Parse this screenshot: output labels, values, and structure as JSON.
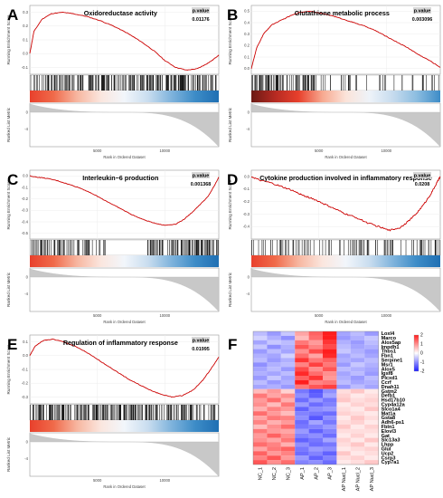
{
  "figure": {
    "panel_labels": [
      "A",
      "B",
      "C",
      "D",
      "E",
      "F"
    ]
  },
  "common": {
    "ylabel_es": "Running Enrichment Score",
    "ylabel_rank": "Ranked List Metric",
    "xlabel": "Rank in Ordered Dataset",
    "xticks": [
      "5000",
      "10000"
    ],
    "rank_yticks": [
      "0",
      "-4"
    ],
    "pvalue_label": "p.value",
    "colors": {
      "curve": "#cc0000",
      "ticks": "#111111",
      "metric_fill": "#c8c8c8",
      "bar_red": "#e8402c",
      "bar_blue": "#2a7fbf"
    }
  },
  "chart_data": [
    {
      "type": "line",
      "panel": "A",
      "title": "Oxidoreductase activity",
      "pvalue": "0.01176",
      "yticks": [
        "0.3",
        "0.2",
        "0.1",
        "0.0",
        "-0.1"
      ],
      "ylim": [
        -0.15,
        0.35
      ],
      "xlim": [
        0,
        14000
      ],
      "x": [
        0,
        300,
        900,
        1600,
        2400,
        3200,
        4200,
        5200,
        6200,
        7200,
        8200,
        9200,
        10000,
        10800,
        11600,
        12400,
        13000,
        13500,
        14000
      ],
      "y": [
        0.0,
        0.16,
        0.25,
        0.29,
        0.3,
        0.29,
        0.27,
        0.24,
        0.2,
        0.15,
        0.09,
        0.02,
        -0.05,
        -0.1,
        -0.12,
        -0.11,
        -0.08,
        -0.05,
        -0.01
      ],
      "hit_density": "dense",
      "bar_gradient": [
        "#e8402c",
        "#f06a4a",
        "#f7b6a0",
        "#fbe6de",
        "#f2f6fb",
        "#c9ddef",
        "#7fb3dc",
        "#3d8cc7",
        "#1f6fb3"
      ]
    },
    {
      "type": "line",
      "panel": "B",
      "title": "Glutathione metabolic process",
      "pvalue": "0.003096",
      "yticks": [
        "0.5",
        "0.4",
        "0.3",
        "0.2",
        "0.1",
        "0.0"
      ],
      "ylim": [
        -0.05,
        0.55
      ],
      "xlim": [
        0,
        14000
      ],
      "x": [
        0,
        400,
        900,
        1500,
        2200,
        2900,
        3600,
        4400,
        5200,
        6000,
        6800,
        7600,
        8400,
        9200,
        10000,
        10800,
        11600,
        12400,
        13200,
        14000
      ],
      "y": [
        0.0,
        0.18,
        0.3,
        0.38,
        0.42,
        0.46,
        0.49,
        0.5,
        0.48,
        0.46,
        0.43,
        0.4,
        0.37,
        0.33,
        0.28,
        0.23,
        0.18,
        0.12,
        0.07,
        0.01
      ],
      "hit_density": "medium",
      "bar_gradient": [
        "#6b1a14",
        "#b52a22",
        "#e8402c",
        "#f7a88f",
        "#fbe3d9",
        "#eef3f9",
        "#c6dbee",
        "#8cbde0",
        "#3d8cc7"
      ]
    },
    {
      "type": "line",
      "panel": "C",
      "title": "Interleukin−6 production",
      "pvalue": "0.001368",
      "yticks": [
        "0.0",
        "-0.1",
        "-0.2",
        "-0.3",
        "-0.4",
        "-0.5"
      ],
      "ylim": [
        -0.55,
        0.05
      ],
      "xlim": [
        0,
        14000
      ],
      "x": [
        0,
        500,
        1200,
        2000,
        2800,
        3600,
        4400,
        5200,
        6000,
        6800,
        7600,
        8400,
        9200,
        10000,
        10800,
        11400,
        12000,
        12600,
        13200,
        13700,
        14000
      ],
      "y": [
        0.0,
        -0.01,
        -0.02,
        -0.04,
        -0.07,
        -0.1,
        -0.14,
        -0.19,
        -0.24,
        -0.29,
        -0.34,
        -0.38,
        -0.41,
        -0.43,
        -0.42,
        -0.38,
        -0.32,
        -0.25,
        -0.18,
        -0.08,
        -0.01
      ],
      "hit_density": "dense_right",
      "bar_gradient": [
        "#e8402c",
        "#f06a4a",
        "#f7b6a0",
        "#fbe6de",
        "#f2f6fb",
        "#c9ddef",
        "#7fb3dc",
        "#3d8cc7",
        "#1f6fb3"
      ]
    },
    {
      "type": "line",
      "panel": "D",
      "title": "Cytokine production involved in inflammatory response",
      "pvalue": "0.0208",
      "yticks": [
        "0.0",
        "-0.1",
        "-0.2",
        "-0.3",
        "-0.4"
      ],
      "ylim": [
        -0.5,
        0.05
      ],
      "xlim": [
        0,
        14000
      ],
      "x": [
        0,
        600,
        1400,
        2200,
        3000,
        3800,
        4600,
        5400,
        6200,
        7000,
        7800,
        8600,
        9400,
        10200,
        11000,
        11600,
        12200,
        12800,
        13300,
        13700,
        14000
      ],
      "y": [
        0.0,
        -0.03,
        -0.05,
        -0.08,
        -0.11,
        -0.15,
        -0.18,
        -0.22,
        -0.26,
        -0.3,
        -0.33,
        -0.37,
        -0.4,
        -0.43,
        -0.41,
        -0.36,
        -0.3,
        -0.22,
        -0.14,
        -0.06,
        0.0
      ],
      "hit_density": "sparse",
      "bar_gradient": [
        "#e8402c",
        "#f06a4a",
        "#f7b6a0",
        "#fbe6de",
        "#f2f6fb",
        "#c9ddef",
        "#7fb3dc",
        "#3d8cc7",
        "#1f6fb3"
      ]
    },
    {
      "type": "line",
      "panel": "E",
      "title": "Regulation of inflammatory response",
      "pvalue": "0.01995",
      "yticks": [
        "0.1",
        "0.0",
        "-0.1",
        "-0.2",
        "-0.3"
      ],
      "ylim": [
        -0.35,
        0.15
      ],
      "xlim": [
        0,
        14000
      ],
      "x": [
        0,
        400,
        1000,
        1700,
        2500,
        3300,
        4100,
        4900,
        5700,
        6500,
        7300,
        8100,
        8900,
        9700,
        10500,
        11300,
        12100,
        12800,
        13400,
        14000
      ],
      "y": [
        0.0,
        0.07,
        0.11,
        0.12,
        0.1,
        0.07,
        0.03,
        -0.02,
        -0.07,
        -0.12,
        -0.17,
        -0.21,
        -0.25,
        -0.28,
        -0.3,
        -0.29,
        -0.25,
        -0.18,
        -0.1,
        -0.01
      ],
      "hit_density": "dense",
      "bar_gradient": [
        "#e8402c",
        "#f06a4a",
        "#f7b6a0",
        "#fbe6de",
        "#f2f6fb",
        "#c9ddef",
        "#7fb3dc",
        "#3d8cc7",
        "#1f6fb3"
      ]
    },
    {
      "type": "heatmap",
      "panel": "F",
      "columns": [
        "NC_1",
        "NC_2",
        "NC_3",
        "AP_1",
        "AP_2",
        "AP_3",
        "AP Nucl_1",
        "AP Nucl_2",
        "AP Nucl_3"
      ],
      "rows": [
        "Loxl4",
        "Marco",
        "Alox5ap",
        "Impdh1",
        "Thbs1",
        "Fbn1",
        "Serpine1",
        "Msr1",
        "Alox5",
        "Igsf8",
        "Plcxd1",
        "Ccrf",
        "Dnah11",
        "Gstm2",
        "Defb1",
        "Hsd17b10",
        "Cyp4a12a",
        "Slco1a4",
        "Mat1a",
        "Gsta8",
        "Adh6-ps1",
        "Fbln1",
        "Elovl3",
        "Gat",
        "Slc13a3",
        "Lhpp",
        "Glul",
        "Ucp2",
        "Csrp3",
        "Cyp7a1"
      ],
      "legend_ticks": [
        "2",
        "1",
        "0",
        "-1",
        "-2"
      ],
      "color_range": [
        -2,
        2
      ],
      "values": [
        [
          -0.6,
          -0.9,
          -0.5,
          0.8,
          1.4,
          2.4,
          -0.8,
          -0.6,
          -0.9
        ],
        [
          -0.4,
          -0.7,
          -1.0,
          0.6,
          1.3,
          2.2,
          -0.9,
          -0.7,
          -0.5
        ],
        [
          -0.8,
          -0.5,
          -0.6,
          1.2,
          0.9,
          1.8,
          -0.7,
          -0.9,
          -0.6
        ],
        [
          -0.5,
          -1.0,
          -0.7,
          1.5,
          1.1,
          1.6,
          -0.6,
          -0.8,
          -0.7
        ],
        [
          -0.9,
          -0.6,
          -0.8,
          1.0,
          1.6,
          2.0,
          -0.5,
          -0.7,
          -0.9
        ],
        [
          -0.7,
          -0.8,
          -0.4,
          1.3,
          0.8,
          1.9,
          -0.8,
          -0.6,
          -0.8
        ],
        [
          -0.6,
          -0.9,
          -0.7,
          1.8,
          1.2,
          1.4,
          -0.7,
          -0.8,
          -0.6
        ],
        [
          -1.0,
          -0.7,
          -0.6,
          1.1,
          1.7,
          1.2,
          -0.9,
          -0.5,
          -0.7
        ],
        [
          -0.8,
          -0.6,
          -0.9,
          1.6,
          1.0,
          1.5,
          -0.6,
          -0.7,
          -0.8
        ],
        [
          -0.7,
          -0.8,
          -0.6,
          1.9,
          1.3,
          1.0,
          -0.8,
          -0.6,
          -0.9
        ],
        [
          -0.9,
          -0.5,
          -0.8,
          1.4,
          1.8,
          0.9,
          -0.7,
          -0.9,
          -0.6
        ],
        [
          -0.6,
          -0.9,
          -0.7,
          2.0,
          1.1,
          1.2,
          -0.6,
          -0.8,
          -0.7
        ],
        [
          -0.8,
          -0.7,
          -0.9,
          1.2,
          1.5,
          1.7,
          -0.9,
          -0.6,
          -0.8
        ],
        [
          0.6,
          0.9,
          0.4,
          -1.2,
          -1.5,
          -1.0,
          0.3,
          0.5,
          0.2
        ],
        [
          1.2,
          0.8,
          1.0,
          -1.0,
          -1.4,
          -0.8,
          0.4,
          0.2,
          0.3
        ],
        [
          0.9,
          1.3,
          0.7,
          -1.3,
          -0.9,
          -1.2,
          0.5,
          0.3,
          0.4
        ],
        [
          1.0,
          0.6,
          1.2,
          -0.9,
          -1.3,
          -1.1,
          0.2,
          0.4,
          0.3
        ],
        [
          0.7,
          1.1,
          0.9,
          -1.4,
          -1.0,
          -0.9,
          0.3,
          0.2,
          0.5
        ],
        [
          1.3,
          0.9,
          0.6,
          -1.1,
          -1.2,
          -1.3,
          0.4,
          0.3,
          0.2
        ],
        [
          0.8,
          1.2,
          1.1,
          -1.0,
          -1.5,
          -1.0,
          0.2,
          0.5,
          0.3
        ],
        [
          1.1,
          0.7,
          0.9,
          -1.3,
          -0.8,
          -1.2,
          0.3,
          0.4,
          0.2
        ],
        [
          0.6,
          1.0,
          1.3,
          -1.2,
          -1.1,
          -0.9,
          0.5,
          0.2,
          0.4
        ],
        [
          1.2,
          0.9,
          0.8,
          -0.9,
          -1.4,
          -1.1,
          0.3,
          0.3,
          0.3
        ],
        [
          0.9,
          1.4,
          1.0,
          -1.1,
          -1.0,
          -1.3,
          0.2,
          0.4,
          0.2
        ],
        [
          1.0,
          0.8,
          1.2,
          -1.4,
          -1.2,
          -0.8,
          0.4,
          0.2,
          0.5
        ],
        [
          1.3,
          1.1,
          0.7,
          -1.0,
          -1.3,
          -1.2,
          0.3,
          0.5,
          0.2
        ],
        [
          0.8,
          1.2,
          1.4,
          -1.2,
          -0.9,
          -1.0,
          0.2,
          0.3,
          0.4
        ],
        [
          1.4,
          0.9,
          1.1,
          -1.3,
          -1.1,
          -1.4,
          0.5,
          0.2,
          0.3
        ],
        [
          1.1,
          1.5,
          0.9,
          -0.9,
          -1.4,
          -1.1,
          0.3,
          0.4,
          0.2
        ],
        [
          1.5,
          1.0,
          1.3,
          -1.1,
          -1.0,
          -1.3,
          0.2,
          0.3,
          0.5
        ]
      ]
    }
  ]
}
